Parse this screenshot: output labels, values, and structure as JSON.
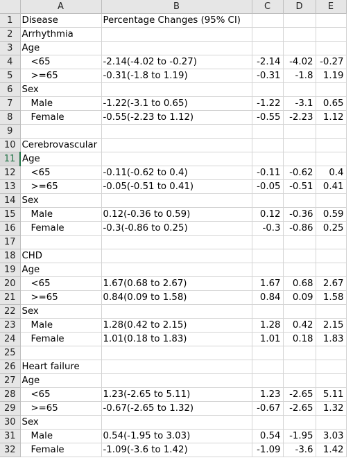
{
  "columns": [
    "A",
    "B",
    "C",
    "D",
    "E"
  ],
  "rows": [
    {
      "n": "1",
      "a": "Disease",
      "b": "Percentage Changes (95% CI)",
      "c": "",
      "d": "",
      "e": "",
      "indent": false
    },
    {
      "n": "2",
      "a": "Arrhythmia",
      "b": "",
      "c": "",
      "d": "",
      "e": "",
      "indent": false
    },
    {
      "n": "3",
      "a": "Age",
      "b": "",
      "c": "",
      "d": "",
      "e": "",
      "indent": false
    },
    {
      "n": "4",
      "a": "<65",
      "b": "-2.14(-4.02 to -0.27)",
      "c": "-2.14",
      "d": "-4.02",
      "e": "-0.27",
      "indent": true
    },
    {
      "n": "5",
      "a": ">=65",
      "b": "-0.31(-1.8 to 1.19)",
      "c": "-0.31",
      "d": "-1.8",
      "e": "1.19",
      "indent": true
    },
    {
      "n": "6",
      "a": "Sex",
      "b": "",
      "c": "",
      "d": "",
      "e": "",
      "indent": false
    },
    {
      "n": "7",
      "a": "Male",
      "b": "-1.22(-3.1 to 0.65)",
      "c": "-1.22",
      "d": "-3.1",
      "e": "0.65",
      "indent": true
    },
    {
      "n": "8",
      "a": "Female",
      "b": "-0.55(-2.23 to 1.12)",
      "c": "-0.55",
      "d": "-2.23",
      "e": "1.12",
      "indent": true
    },
    {
      "n": "9",
      "a": "",
      "b": "",
      "c": "",
      "d": "",
      "e": "",
      "indent": false
    },
    {
      "n": "10",
      "a": "Cerebrovascular",
      "b": "",
      "c": "",
      "d": "",
      "e": "",
      "indent": false
    },
    {
      "n": "11",
      "a": "Age",
      "b": "",
      "c": "",
      "d": "",
      "e": "",
      "indent": false
    },
    {
      "n": "12",
      "a": "<65",
      "b": "-0.11(-0.62 to 0.4)",
      "c": "-0.11",
      "d": "-0.62",
      "e": "0.4",
      "indent": true
    },
    {
      "n": "13",
      "a": ">=65",
      "b": "-0.05(-0.51 to 0.41)",
      "c": "-0.05",
      "d": "-0.51",
      "e": "0.41",
      "indent": true
    },
    {
      "n": "14",
      "a": "Sex",
      "b": "",
      "c": "",
      "d": "",
      "e": "",
      "indent": false
    },
    {
      "n": "15",
      "a": "Male",
      "b": "0.12(-0.36 to 0.59)",
      "c": "0.12",
      "d": "-0.36",
      "e": "0.59",
      "indent": true
    },
    {
      "n": "16",
      "a": "Female",
      "b": "-0.3(-0.86 to 0.25)",
      "c": "-0.3",
      "d": "-0.86",
      "e": "0.25",
      "indent": true
    },
    {
      "n": "17",
      "a": "",
      "b": "",
      "c": "",
      "d": "",
      "e": "",
      "indent": false
    },
    {
      "n": "18",
      "a": "CHD",
      "b": "",
      "c": "",
      "d": "",
      "e": "",
      "indent": false
    },
    {
      "n": "19",
      "a": "Age",
      "b": "",
      "c": "",
      "d": "",
      "e": "",
      "indent": false
    },
    {
      "n": "20",
      "a": "<65",
      "b": "1.67(0.68 to 2.67)",
      "c": "1.67",
      "d": "0.68",
      "e": "2.67",
      "indent": true
    },
    {
      "n": "21",
      "a": ">=65",
      "b": "0.84(0.09 to 1.58)",
      "c": "0.84",
      "d": "0.09",
      "e": "1.58",
      "indent": true
    },
    {
      "n": "22",
      "a": "Sex",
      "b": "",
      "c": "",
      "d": "",
      "e": "",
      "indent": false
    },
    {
      "n": "23",
      "a": "Male",
      "b": "1.28(0.42 to 2.15)",
      "c": "1.28",
      "d": "0.42",
      "e": "2.15",
      "indent": true
    },
    {
      "n": "24",
      "a": "Female",
      "b": "1.01(0.18 to 1.83)",
      "c": "1.01",
      "d": "0.18",
      "e": "1.83",
      "indent": true
    },
    {
      "n": "25",
      "a": "",
      "b": "",
      "c": "",
      "d": "",
      "e": "",
      "indent": false
    },
    {
      "n": "26",
      "a": "Heart failure",
      "b": "",
      "c": "",
      "d": "",
      "e": "",
      "indent": false
    },
    {
      "n": "27",
      "a": "Age",
      "b": "",
      "c": "",
      "d": "",
      "e": "",
      "indent": false
    },
    {
      "n": "28",
      "a": "<65",
      "b": "1.23(-2.65 to 5.11)",
      "c": "1.23",
      "d": "-2.65",
      "e": "5.11",
      "indent": true
    },
    {
      "n": "29",
      "a": ">=65",
      "b": "-0.67(-2.65 to 1.32)",
      "c": "-0.67",
      "d": "-2.65",
      "e": "1.32",
      "indent": true
    },
    {
      "n": "30",
      "a": "Sex",
      "b": "",
      "c": "",
      "d": "",
      "e": "",
      "indent": false
    },
    {
      "n": "31",
      "a": "Male",
      "b": "0.54(-1.95 to 3.03)",
      "c": "0.54",
      "d": "-1.95",
      "e": "3.03",
      "indent": true
    },
    {
      "n": "32",
      "a": "Female",
      "b": "-1.09(-3.6 to 1.42)",
      "c": "-1.09",
      "d": "-3.6",
      "e": "1.42",
      "indent": true
    }
  ],
  "selected_row": "11",
  "colors": {
    "header_bg": "#e6e6e6",
    "grid": "#d4d4d4",
    "selection": "#217346"
  }
}
